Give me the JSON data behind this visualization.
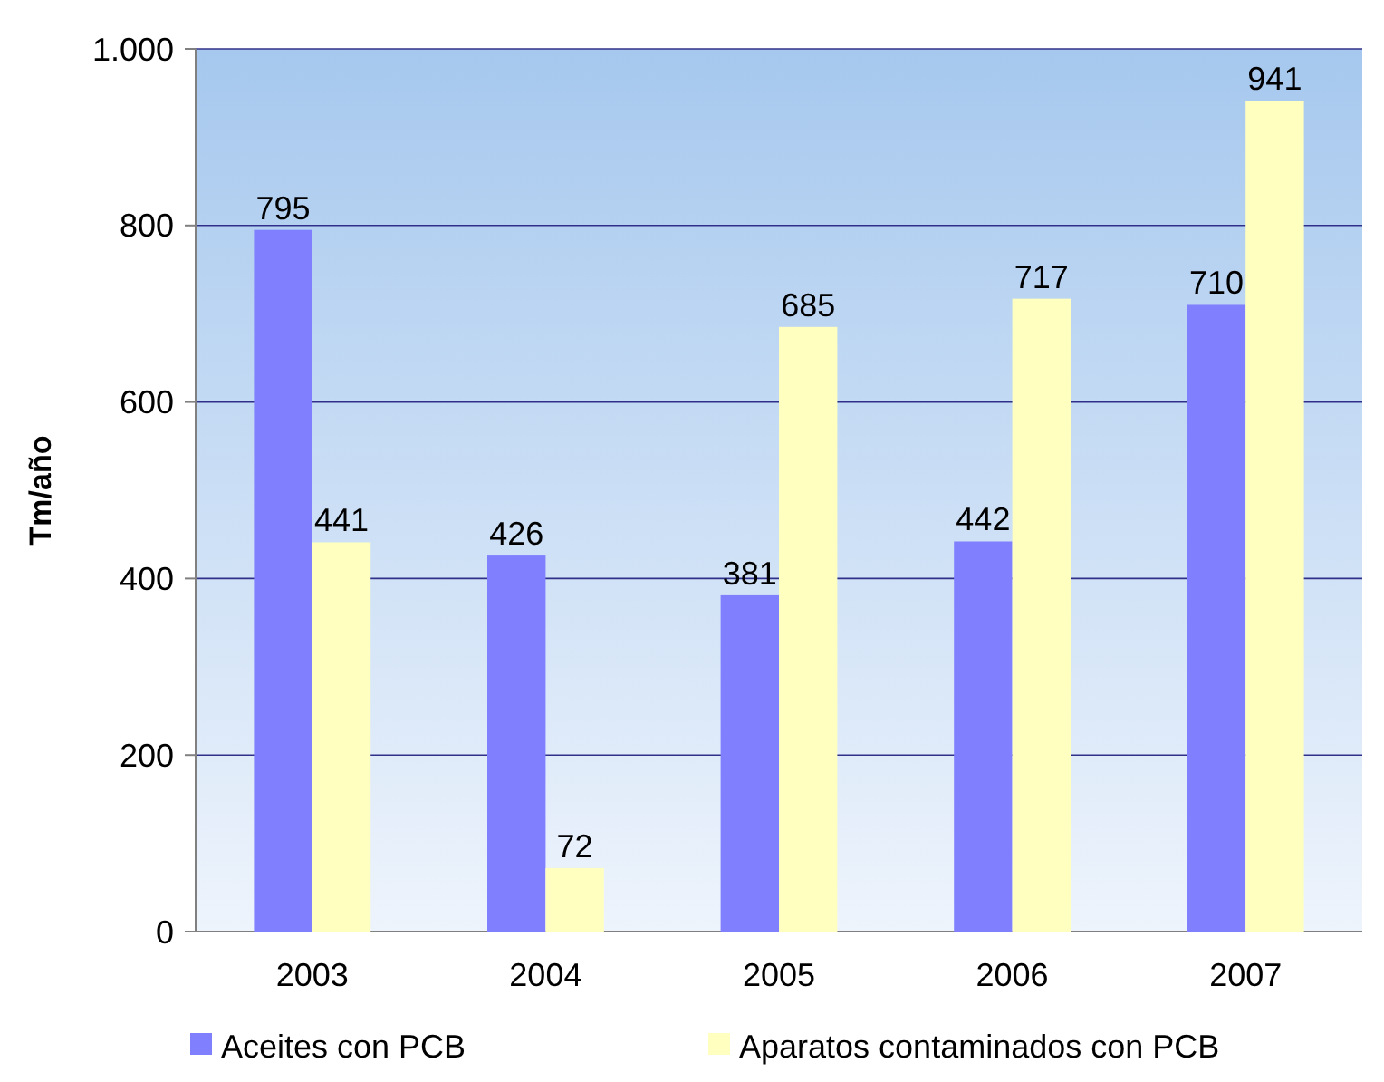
{
  "chart_data": {
    "type": "bar",
    "ylabel": "Tm/año",
    "categories": [
      "2003",
      "2004",
      "2005",
      "2006",
      "2007"
    ],
    "series": [
      {
        "name": "Aceites con PCB",
        "color": "#8080ff",
        "values": [
          795,
          426,
          381,
          442,
          710
        ]
      },
      {
        "name": "Aparatos contaminados con PCB",
        "color": "#ffffc0",
        "values": [
          441,
          72,
          685,
          717,
          941
        ]
      }
    ],
    "ylim": [
      0,
      1000
    ],
    "yticks": [
      0,
      200,
      400,
      600,
      800,
      {
        "value": 1000,
        "label": "1.000"
      }
    ],
    "grid": "y",
    "data_labels": true,
    "legend": "bottom"
  }
}
